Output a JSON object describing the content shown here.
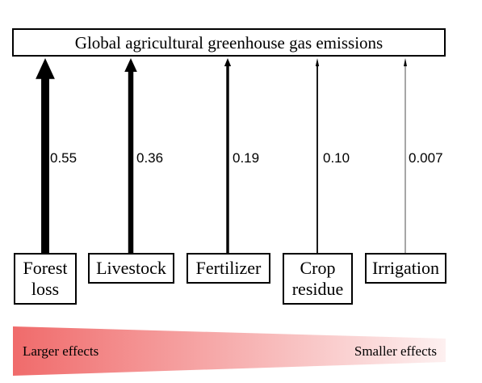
{
  "title": "Global agricultural greenhouse gas emissions",
  "sources": [
    {
      "label": "Forest\nloss",
      "value": "0.55",
      "weight": 0.55
    },
    {
      "label": "Livestock",
      "value": "0.36",
      "weight": 0.36
    },
    {
      "label": "Fertilizer",
      "value": "0.19",
      "weight": 0.19
    },
    {
      "label": "Crop\nresidue",
      "value": "0.10",
      "weight": 0.1
    },
    {
      "label": "Irrigation",
      "value": "0.007",
      "weight": 0.007
    }
  ],
  "effects": {
    "larger_label": "Larger effects",
    "smaller_label": "Smaller effects",
    "gradient_start": "#f06b6b",
    "gradient_end": "#fdf0f0"
  }
}
